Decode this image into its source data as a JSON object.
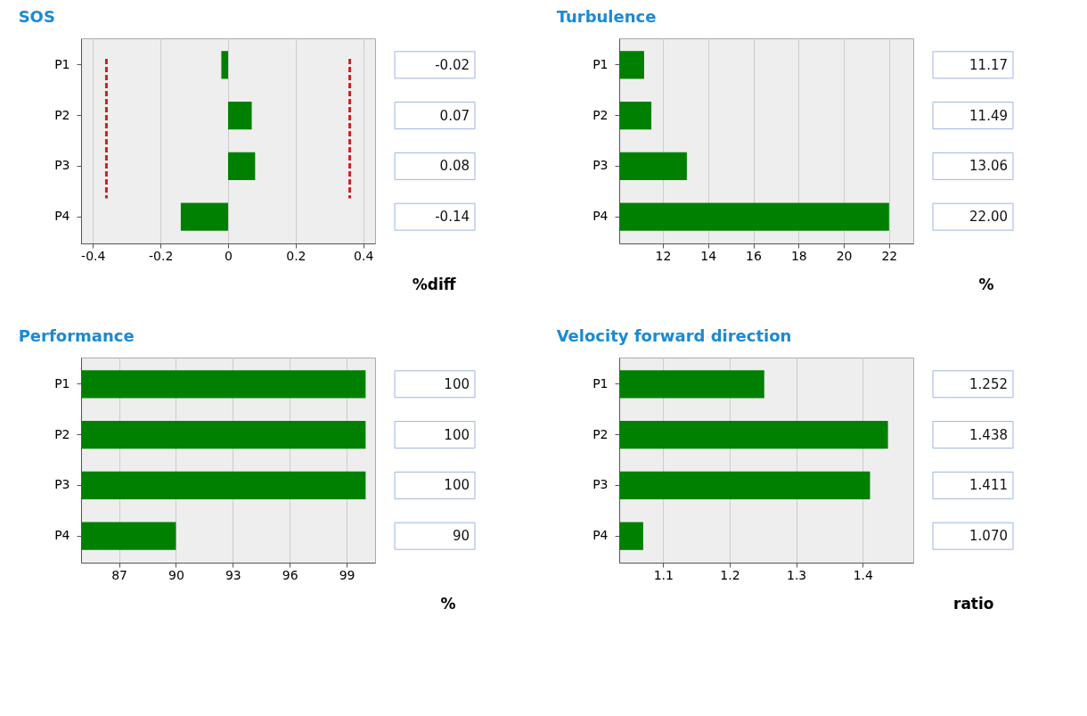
{
  "chart_data": [
    {
      "type": "bar",
      "orientation": "horizontal",
      "title": "SOS",
      "xlabel": "%diff",
      "categories": [
        "P1",
        "P2",
        "P3",
        "P4"
      ],
      "values": [
        -0.02,
        0.07,
        0.08,
        -0.14
      ],
      "value_labels": [
        "-0.02",
        "0.07",
        "0.08",
        "-0.14"
      ],
      "color": "#008000",
      "xlim": [
        -0.435,
        0.435
      ],
      "xticks": [
        -0.4,
        -0.2,
        0,
        0.2,
        0.4
      ],
      "grid": "x",
      "ref_lines": [
        {
          "axis": "x",
          "value": -0.36,
          "color": "#cc2222",
          "line_style": "dashed"
        },
        {
          "axis": "x",
          "value": 0.36,
          "color": "#cc2222",
          "line_style": "dashed"
        }
      ]
    },
    {
      "type": "bar",
      "orientation": "horizontal",
      "title": "Turbulence",
      "xlabel": "%",
      "categories": [
        "P1",
        "P2",
        "P3",
        "P4"
      ],
      "values": [
        11.17,
        11.49,
        13.06,
        22.0
      ],
      "value_labels": [
        "11.17",
        "11.49",
        "13.06",
        "22.00"
      ],
      "color": "#008000",
      "xlim": [
        10.07,
        23.07
      ],
      "xticks": [
        12,
        14,
        16,
        18,
        20,
        22
      ],
      "grid": "x"
    },
    {
      "type": "bar",
      "orientation": "horizontal",
      "title": "Performance",
      "xlabel": "%",
      "categories": [
        "P1",
        "P2",
        "P3",
        "P4"
      ],
      "values": [
        100,
        100,
        100,
        90
      ],
      "value_labels": [
        "100",
        "100",
        "100",
        "90"
      ],
      "color": "#008000",
      "xlim": [
        85,
        100.5
      ],
      "xticks": [
        87,
        90,
        93,
        96,
        99
      ],
      "grid": "x"
    },
    {
      "type": "bar",
      "orientation": "horizontal",
      "title": "Velocity  forward direction",
      "xlabel": "ratio",
      "categories": [
        "P1",
        "P2",
        "P3",
        "P4"
      ],
      "values": [
        1.252,
        1.438,
        1.411,
        1.07
      ],
      "value_labels": [
        "1.252",
        "1.438",
        "1.411",
        "1.070"
      ],
      "color": "#008000",
      "xlim": [
        1.034,
        1.476
      ],
      "xticks": [
        1.1,
        1.2,
        1.3,
        1.4
      ],
      "grid": "x"
    }
  ]
}
